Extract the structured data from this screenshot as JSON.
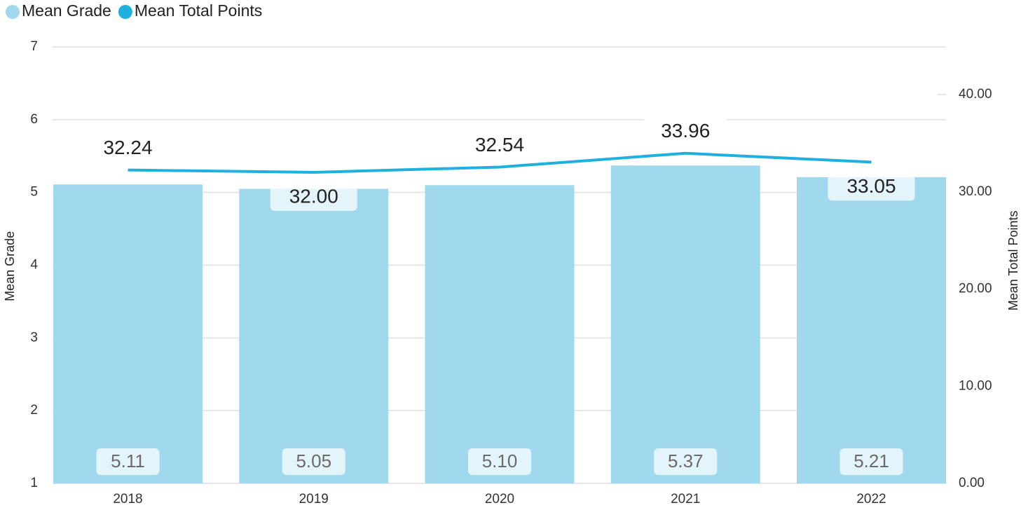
{
  "chart_data": {
    "type": "bar-line",
    "categories": [
      "2018",
      "2019",
      "2020",
      "2021",
      "2022"
    ],
    "series": [
      {
        "name": "Mean Grade",
        "type": "bar",
        "color": "#a0d9ee",
        "axis": "y",
        "values": [
          5.11,
          5.05,
          5.1,
          5.37,
          5.21
        ],
        "value_labels": [
          "5.11",
          "5.05",
          "5.10",
          "5.37",
          "5.21"
        ]
      },
      {
        "name": "Mean Total Points",
        "type": "line",
        "color": "#1fb0e0",
        "axis": "y2",
        "values": [
          32.24,
          32.0,
          32.54,
          33.96,
          33.05
        ],
        "value_labels": [
          "32.24",
          "32.00",
          "32.54",
          "33.96",
          "33.05"
        ]
      }
    ],
    "ylabel": "Mean Grade",
    "y2label": "Mean Total Points",
    "ylim": [
      1,
      7
    ],
    "yticks": [
      1,
      2,
      3,
      4,
      5,
      6,
      7
    ],
    "y2lim": [
      0,
      44.9
    ],
    "y2ticks": [
      {
        "value": 0,
        "label": "0.00"
      },
      {
        "value": 10,
        "label": "10.00"
      },
      {
        "value": 20,
        "label": "20.00"
      },
      {
        "value": 30,
        "label": "30.00"
      },
      {
        "value": 40,
        "label": "40.00"
      }
    ],
    "grid": true,
    "legend": "top-left"
  }
}
